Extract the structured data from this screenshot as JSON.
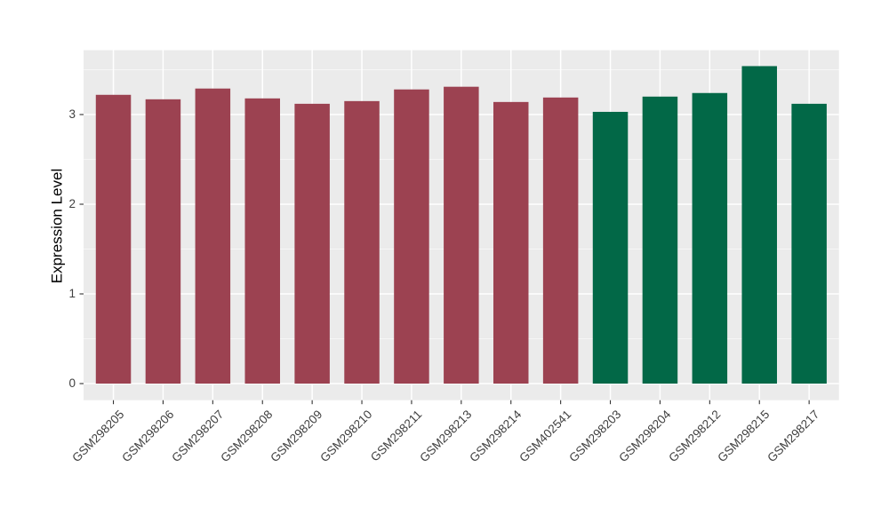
{
  "chart_data": {
    "type": "bar",
    "title": "",
    "xlabel": "",
    "ylabel": "Expression Level",
    "categories": [
      "GSM298205",
      "GSM298206",
      "GSM298207",
      "GSM298208",
      "GSM298209",
      "GSM298210",
      "GSM298211",
      "GSM298213",
      "GSM298214",
      "GSM402541",
      "GSM298203",
      "GSM298204",
      "GSM298212",
      "GSM298215",
      "GSM298217"
    ],
    "values": [
      3.22,
      3.17,
      3.29,
      3.18,
      3.12,
      3.15,
      3.28,
      3.31,
      3.14,
      3.19,
      3.03,
      3.2,
      3.24,
      3.54,
      3.12
    ],
    "bar_groups": [
      0,
      0,
      0,
      0,
      0,
      0,
      0,
      0,
      0,
      0,
      1,
      1,
      1,
      1,
      1
    ],
    "group_colors": [
      "#9C4251",
      "#026847"
    ],
    "y_ticks": [
      "0",
      "1",
      "2",
      "3"
    ],
    "ylim": [
      0,
      3.72
    ],
    "grid": "on",
    "legend": "none",
    "colors": {
      "panel_background": "#EBEBEB",
      "grid_major": "#FFFFFF",
      "grid_minor": "#F6F6F6",
      "axis_text": "#404040",
      "axis_title": "#000000",
      "tick_mark": "#333333"
    }
  }
}
